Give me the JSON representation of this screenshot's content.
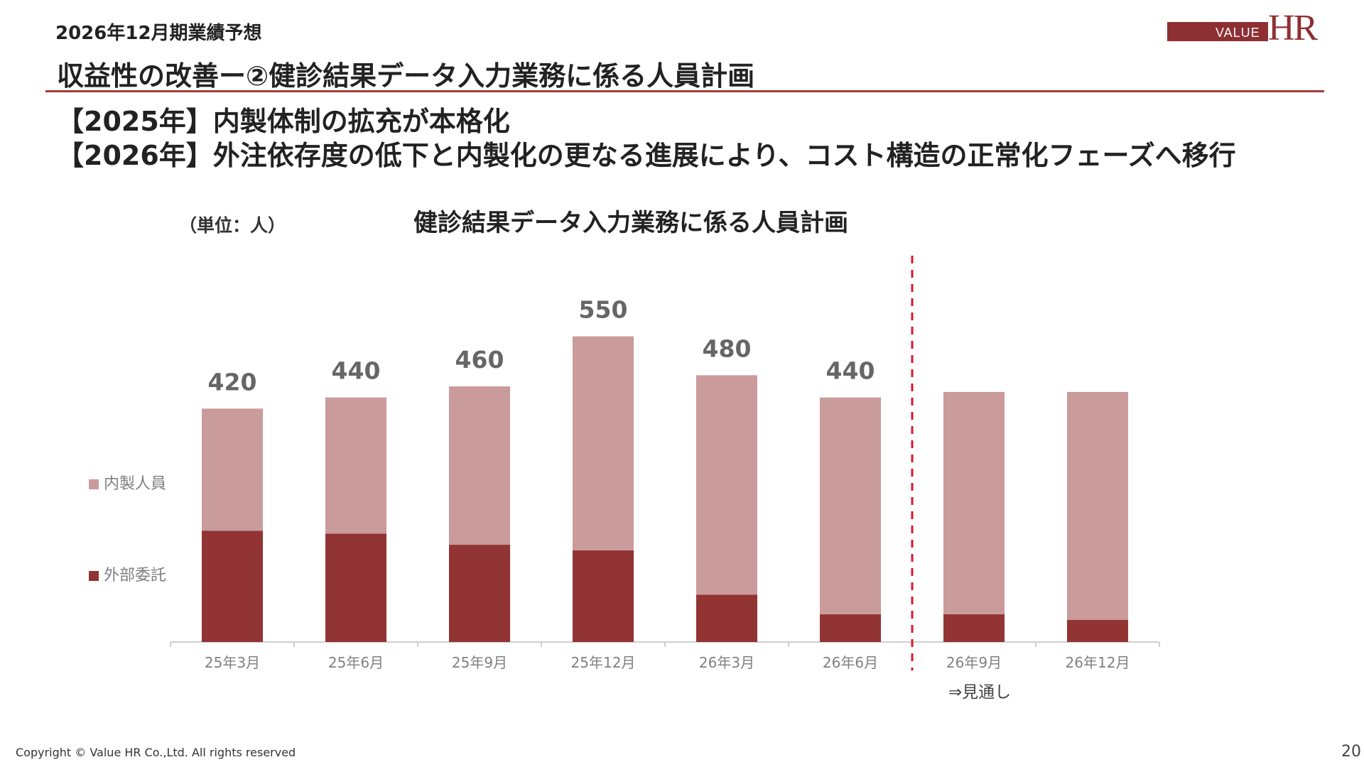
{
  "header": {
    "subtitle": "2026年12月期業績予想",
    "title": "収益性の改善ー②健診結果データ入力業務に係る人員計画",
    "logo": {
      "value_text": "VALUE",
      "hr_text": "HR"
    }
  },
  "headlines": [
    "【2025年】内製体制の拡充が本格化",
    "【2026年】外注依存度の低下と内製化の更なる進展により、コスト構造の正常化フェーズへ移行"
  ],
  "chart_data": {
    "type": "bar",
    "stacked": true,
    "title": "健診結果データ入力業務に係る人員計画",
    "unit_label": "（単位：人）",
    "categories": [
      "25年3月",
      "25年6月",
      "25年9月",
      "25年12月",
      "26年3月",
      "26年6月",
      "26年9月",
      "26年12月"
    ],
    "series": [
      {
        "name": "外部委託",
        "color": "#923434",
        "values": [
          200,
          195,
          175,
          165,
          85,
          50,
          50,
          40
        ]
      },
      {
        "name": "内製人員",
        "color": "#c99b9a",
        "values": [
          220,
          245,
          285,
          385,
          395,
          390,
          400,
          410
        ]
      }
    ],
    "totals": [
      "420",
      "440",
      "460",
      "550",
      "480",
      "440",
      "",
      ""
    ],
    "ylim": [
      0,
      700
    ],
    "forecast_divider_after_index": 5,
    "forecast_label": "⇒見通し",
    "divider_color": "#d7192a",
    "legend_position": "left"
  },
  "footer": {
    "copyright": "Copyright © Value HR Co.,Ltd. All rights reserved",
    "page_number": "20"
  }
}
